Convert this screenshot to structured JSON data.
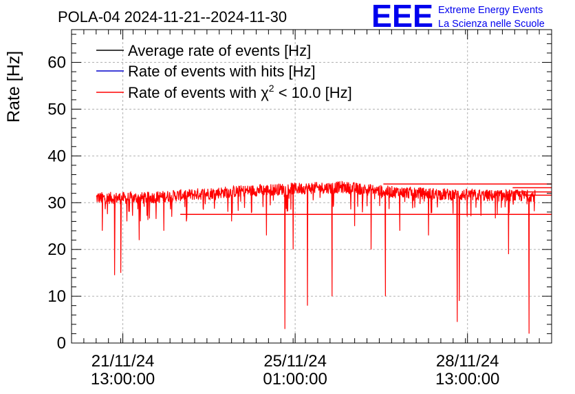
{
  "header": {
    "title": "POLA-04 2024-11-21--2024-11-30",
    "logo_text": "EEE",
    "logo_line1": "Extreme Energy Events",
    "logo_line2": "La Scienza nelle Scuole",
    "logo_color": "#0000ee"
  },
  "chart_data": {
    "type": "line",
    "ylabel": "Rate [Hz]",
    "xlabel": "",
    "ylim": [
      0,
      67
    ],
    "yticks": [
      0,
      10,
      20,
      30,
      40,
      50,
      60
    ],
    "xlim": [
      "2024-11-20 12:00",
      "2024-11-30 06:00"
    ],
    "xticks": [
      {
        "date": "2024-11-21 13:00",
        "label_date": "21/11/24",
        "label_time": "13:00:00"
      },
      {
        "date": "2024-11-25 01:00",
        "label_date": "25/11/24",
        "label_time": "01:00:00"
      },
      {
        "date": "2024-11-28 13:00",
        "label_date": "28/11/24",
        "label_time": "13:00:00"
      }
    ],
    "grid": true,
    "legend_position": "top-left",
    "legend": [
      {
        "name": "Average rate of events [Hz]",
        "color": "#000000"
      },
      {
        "name": "Rate of events with hits [Hz]",
        "color": "#0000cc"
      },
      {
        "name_prefix": "Rate of events with ",
        "name_symbol": "χ",
        "name_sup": "2",
        "name_suffix": " < 10.0 [Hz]",
        "color": "#ff0000"
      }
    ],
    "series_baseline": [
      {
        "x": "2024-11-21 00:00",
        "y": 31.0
      },
      {
        "x": "2024-11-22 00:00",
        "y": 31.0
      },
      {
        "x": "2024-11-23 00:00",
        "y": 31.8
      },
      {
        "x": "2024-11-24 00:00",
        "y": 32.5
      },
      {
        "x": "2024-11-25 00:00",
        "y": 33.0
      },
      {
        "x": "2024-11-26 00:00",
        "y": 33.3
      },
      {
        "x": "2024-11-27 00:00",
        "y": 32.3
      },
      {
        "x": "2024-11-28 00:00",
        "y": 31.8
      },
      {
        "x": "2024-11-29 00:00",
        "y": 31.5
      },
      {
        "x": "2024-11-30 00:00",
        "y": 31.5
      }
    ],
    "dips": [
      {
        "x": "2024-11-21 03:00",
        "y": 24
      },
      {
        "x": "2024-11-21 09:00",
        "y": 14.5
      },
      {
        "x": "2024-11-21 12:00",
        "y": 15
      },
      {
        "x": "2024-11-21 15:00",
        "y": 26
      },
      {
        "x": "2024-11-21 21:00",
        "y": 22
      },
      {
        "x": "2024-11-22 09:00",
        "y": 24
      },
      {
        "x": "2024-11-22 20:00",
        "y": 26
      },
      {
        "x": "2024-11-23 18:00",
        "y": 26
      },
      {
        "x": "2024-11-24 11:00",
        "y": 23
      },
      {
        "x": "2024-11-24 20:00",
        "y": 3
      },
      {
        "x": "2024-11-25 00:00",
        "y": 20
      },
      {
        "x": "2024-11-25 07:00",
        "y": 8
      },
      {
        "x": "2024-11-25 19:00",
        "y": 10
      },
      {
        "x": "2024-11-26 06:00",
        "y": 25
      },
      {
        "x": "2024-11-26 14:00",
        "y": 20
      },
      {
        "x": "2024-11-26 21:00",
        "y": 10
      },
      {
        "x": "2024-11-27 04:00",
        "y": 24
      },
      {
        "x": "2024-11-27 18:00",
        "y": 23
      },
      {
        "x": "2024-11-28 08:00",
        "y": 4.5
      },
      {
        "x": "2024-11-28 09:00",
        "y": 9
      },
      {
        "x": "2024-11-29 09:00",
        "y": 19
      },
      {
        "x": "2024-11-29 19:00",
        "y": 2
      }
    ],
    "step_levels": [
      {
        "x_start": "2024-11-22 17:00",
        "y": 27.5
      },
      {
        "x_start": "2024-11-26 20:00",
        "y": 34
      },
      {
        "x_start": "2024-11-29 11:00",
        "y": 33.2
      },
      {
        "x_start": "2024-11-29 13:00",
        "y": 32.3
      },
      {
        "x_start": "2024-11-29 16:00",
        "y": 31.6
      }
    ]
  }
}
